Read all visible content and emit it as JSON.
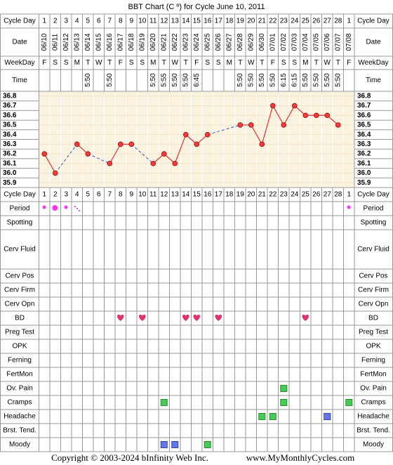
{
  "title": "BBT Chart (C º) for Cycle June 10, 2011",
  "header_labels": [
    "Cycle Day",
    "Date",
    "WeekDay",
    "Time"
  ],
  "cycle_days": [
    1,
    2,
    3,
    4,
    5,
    6,
    7,
    8,
    9,
    10,
    11,
    12,
    13,
    14,
    15,
    16,
    17,
    18,
    19,
    20,
    21,
    22,
    23,
    24,
    25,
    26,
    27,
    28,
    1
  ],
  "dates": [
    "06/10",
    "06/11",
    "06/12",
    "06/13",
    "06/14",
    "06/15",
    "06/16",
    "06/17",
    "06/18",
    "06/19",
    "06/20",
    "06/21",
    "06/22",
    "06/23",
    "06/24",
    "06/25",
    "06/26",
    "06/27",
    "06/28",
    "06/29",
    "06/30",
    "07/01",
    "07/02",
    "07/03",
    "07/04",
    "07/05",
    "07/06",
    "07/07",
    "07/08"
  ],
  "weekdays": [
    "F",
    "S",
    "S",
    "M",
    "T",
    "W",
    "T",
    "F",
    "S",
    "S",
    "M",
    "T",
    "W",
    "T",
    "F",
    "S",
    "S",
    "M",
    "T",
    "W",
    "T",
    "F",
    "S",
    "S",
    "M",
    "T",
    "W",
    "T",
    "F"
  ],
  "times": [
    null,
    null,
    null,
    null,
    "5:50",
    null,
    "5:50",
    null,
    null,
    null,
    "5:50",
    "5:55",
    "5:50",
    "5:50",
    "6:45",
    null,
    null,
    null,
    "5:50",
    "5:50",
    "5:50",
    "5:50",
    "6:15",
    "6:15",
    "5:50",
    "5:50",
    "5:50",
    "5:50",
    null
  ],
  "chart_data": {
    "type": "line",
    "values": [
      36.2,
      36.0,
      null,
      36.3,
      36.2,
      null,
      36.1,
      36.3,
      36.3,
      null,
      36.1,
      36.2,
      36.1,
      36.4,
      36.3,
      36.4,
      null,
      null,
      36.5,
      36.5,
      36.3,
      36.7,
      36.5,
      36.7,
      36.6,
      36.6,
      36.6,
      36.5,
      null
    ],
    "color": "#e03030",
    "gap_color": "#3355cc",
    "ylim": [
      35.85,
      36.85
    ],
    "yticks": [
      35.9,
      {
        "value": 36,
        "label": "36.0"
      },
      36.1,
      36.2,
      36.3,
      36.4,
      36.5,
      36.6,
      36.7,
      36.8
    ]
  },
  "observation_labels": [
    "Cycle Day",
    "Period",
    "Spotting",
    "Cerv Fluid",
    "Cerv Pos",
    "Cerv Firm",
    "Cerv Opn",
    "BD",
    "Preg Test",
    "OPK",
    "Ferning",
    "FertMon",
    "Ov. Pain",
    "Cramps",
    "Headache",
    "Brst. Tend.",
    "Moody"
  ],
  "footer": {
    "copyright": "Copyright © 2003-2024 bInfinity Web Inc.",
    "site": "www.MyMonthlyCycles.com"
  }
}
